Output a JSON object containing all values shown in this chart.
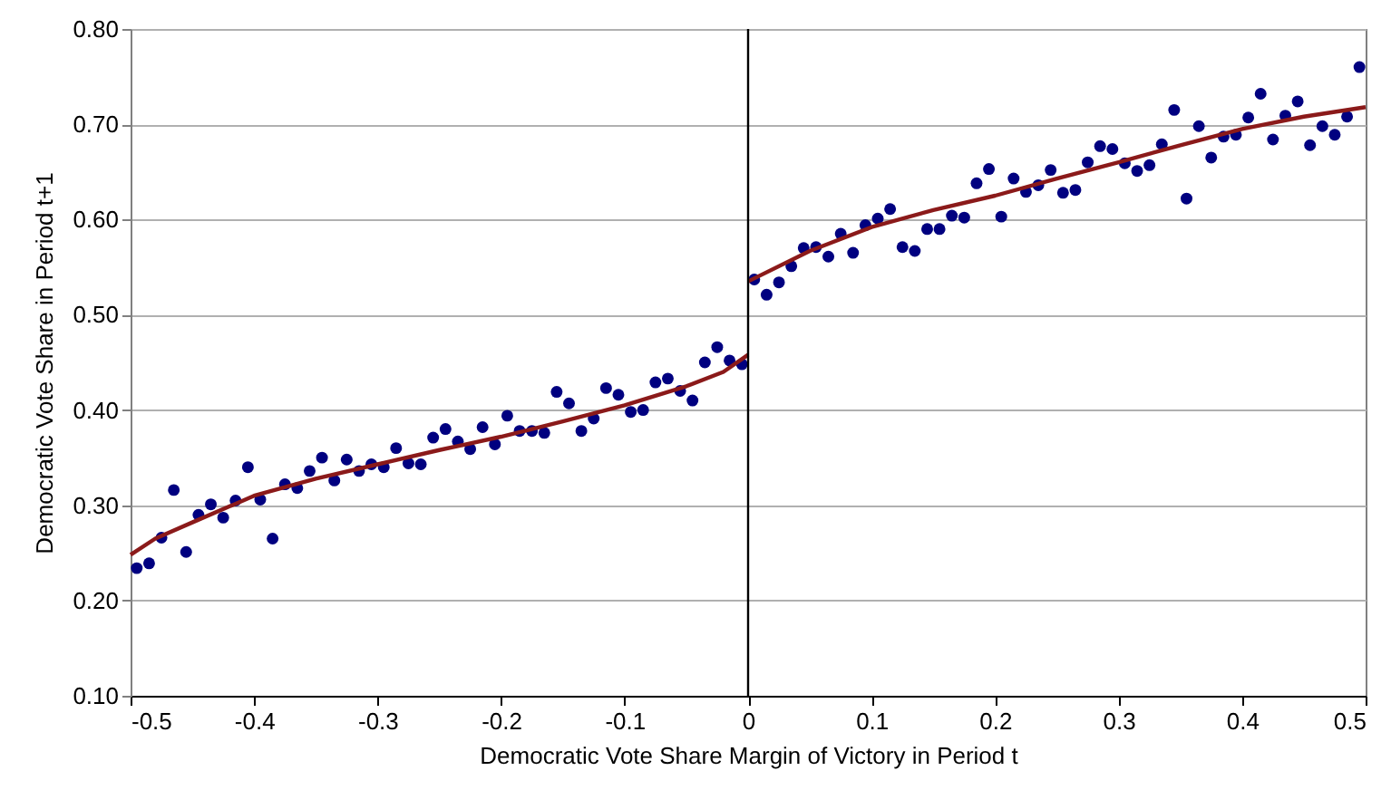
{
  "chart_data": {
    "type": "scatter",
    "xlabel": "Democratic Vote Share Margin of Victory in Period t",
    "ylabel": "Democratic Vote Share in Period t+1",
    "xlim": [
      -0.5,
      0.5
    ],
    "ylim": [
      0.1,
      0.8
    ],
    "xticks": [
      -0.5,
      -0.4,
      -0.3,
      -0.2,
      -0.1,
      0,
      0.1,
      0.2,
      0.3,
      0.4,
      0.5
    ],
    "yticks": [
      {
        "value": 0.1,
        "label": "0.10"
      },
      {
        "value": 0.2,
        "label": "0.20"
      },
      {
        "value": 0.3,
        "label": "0.30"
      },
      {
        "value": 0.4,
        "label": "0.40"
      },
      {
        "value": 0.5,
        "label": "0.50"
      },
      {
        "value": 0.6,
        "label": "0.60"
      },
      {
        "value": 0.7,
        "label": "0.70"
      },
      {
        "value": 0.8,
        "label": "0.80"
      }
    ],
    "grid": "y",
    "ref_lines": [
      {
        "axis": "x",
        "value": 0,
        "color": "#000000",
        "line_style": "solid"
      }
    ],
    "series": [
      {
        "marker": "circle",
        "color": "#000080",
        "x": [
          -0.495,
          -0.485,
          -0.475,
          -0.465,
          -0.455,
          -0.445,
          -0.435,
          -0.425,
          -0.415,
          -0.405,
          -0.395,
          -0.385,
          -0.375,
          -0.365,
          -0.355,
          -0.345,
          -0.335,
          -0.325,
          -0.315,
          -0.305,
          -0.295,
          -0.285,
          -0.275,
          -0.265,
          -0.255,
          -0.245,
          -0.235,
          -0.225,
          -0.215,
          -0.205,
          -0.195,
          -0.185,
          -0.175,
          -0.165,
          -0.155,
          -0.145,
          -0.135,
          -0.125,
          -0.115,
          -0.105,
          -0.095,
          -0.085,
          -0.075,
          -0.065,
          -0.055,
          -0.045,
          -0.035,
          -0.025,
          -0.015,
          -0.005,
          0.005,
          0.015,
          0.025,
          0.035,
          0.045,
          0.055,
          0.065,
          0.075,
          0.085,
          0.095,
          0.105,
          0.115,
          0.125,
          0.135,
          0.145,
          0.155,
          0.165,
          0.175,
          0.185,
          0.195,
          0.205,
          0.215,
          0.225,
          0.235,
          0.245,
          0.255,
          0.265,
          0.275,
          0.285,
          0.295,
          0.305,
          0.315,
          0.325,
          0.335,
          0.345,
          0.355,
          0.365,
          0.375,
          0.385,
          0.395,
          0.405,
          0.415,
          0.425,
          0.435,
          0.445,
          0.455,
          0.465,
          0.475,
          0.485,
          0.495
        ],
        "values": [
          0.234,
          0.239,
          0.266,
          0.316,
          0.251,
          0.29,
          0.301,
          0.287,
          0.305,
          0.34,
          0.306,
          0.265,
          0.322,
          0.318,
          0.336,
          0.35,
          0.326,
          0.348,
          0.336,
          0.343,
          0.34,
          0.36,
          0.344,
          0.343,
          0.371,
          0.38,
          0.367,
          0.359,
          0.382,
          0.364,
          0.394,
          0.378,
          0.378,
          0.376,
          0.419,
          0.407,
          0.378,
          0.391,
          0.423,
          0.416,
          0.398,
          0.4,
          0.429,
          0.433,
          0.42,
          0.41,
          0.45,
          0.466,
          0.452,
          0.448,
          0.537,
          0.521,
          0.534,
          0.551,
          0.57,
          0.571,
          0.561,
          0.585,
          0.565,
          0.594,
          0.601,
          0.611,
          0.571,
          0.567,
          0.59,
          0.59,
          0.604,
          0.602,
          0.638,
          0.653,
          0.603,
          0.643,
          0.629,
          0.636,
          0.652,
          0.628,
          0.631,
          0.66,
          0.677,
          0.674,
          0.659,
          0.651,
          0.657,
          0.679,
          0.715,
          0.622,
          0.698,
          0.665,
          0.687,
          0.689,
          0.707,
          0.732,
          0.684,
          0.709,
          0.724,
          0.678,
          0.698,
          0.689,
          0.708,
          0.76
        ]
      },
      {
        "type": "line",
        "marker": "none",
        "color": "#8b1a1a",
        "x": [
          -0.5,
          -0.48,
          -0.45,
          -0.4,
          -0.35,
          -0.3,
          -0.25,
          -0.2,
          -0.15,
          -0.1,
          -0.05,
          -0.02,
          0
        ],
        "values": [
          0.248,
          0.265,
          0.282,
          0.31,
          0.328,
          0.343,
          0.358,
          0.372,
          0.388,
          0.405,
          0.425,
          0.44,
          0.458
        ]
      },
      {
        "type": "line",
        "marker": "none",
        "color": "#8b1a1a",
        "x": [
          0,
          0.05,
          0.1,
          0.15,
          0.2,
          0.25,
          0.3,
          0.35,
          0.4,
          0.45,
          0.5
        ],
        "values": [
          0.535,
          0.567,
          0.592,
          0.61,
          0.625,
          0.643,
          0.66,
          0.678,
          0.695,
          0.708,
          0.718
        ]
      }
    ]
  }
}
